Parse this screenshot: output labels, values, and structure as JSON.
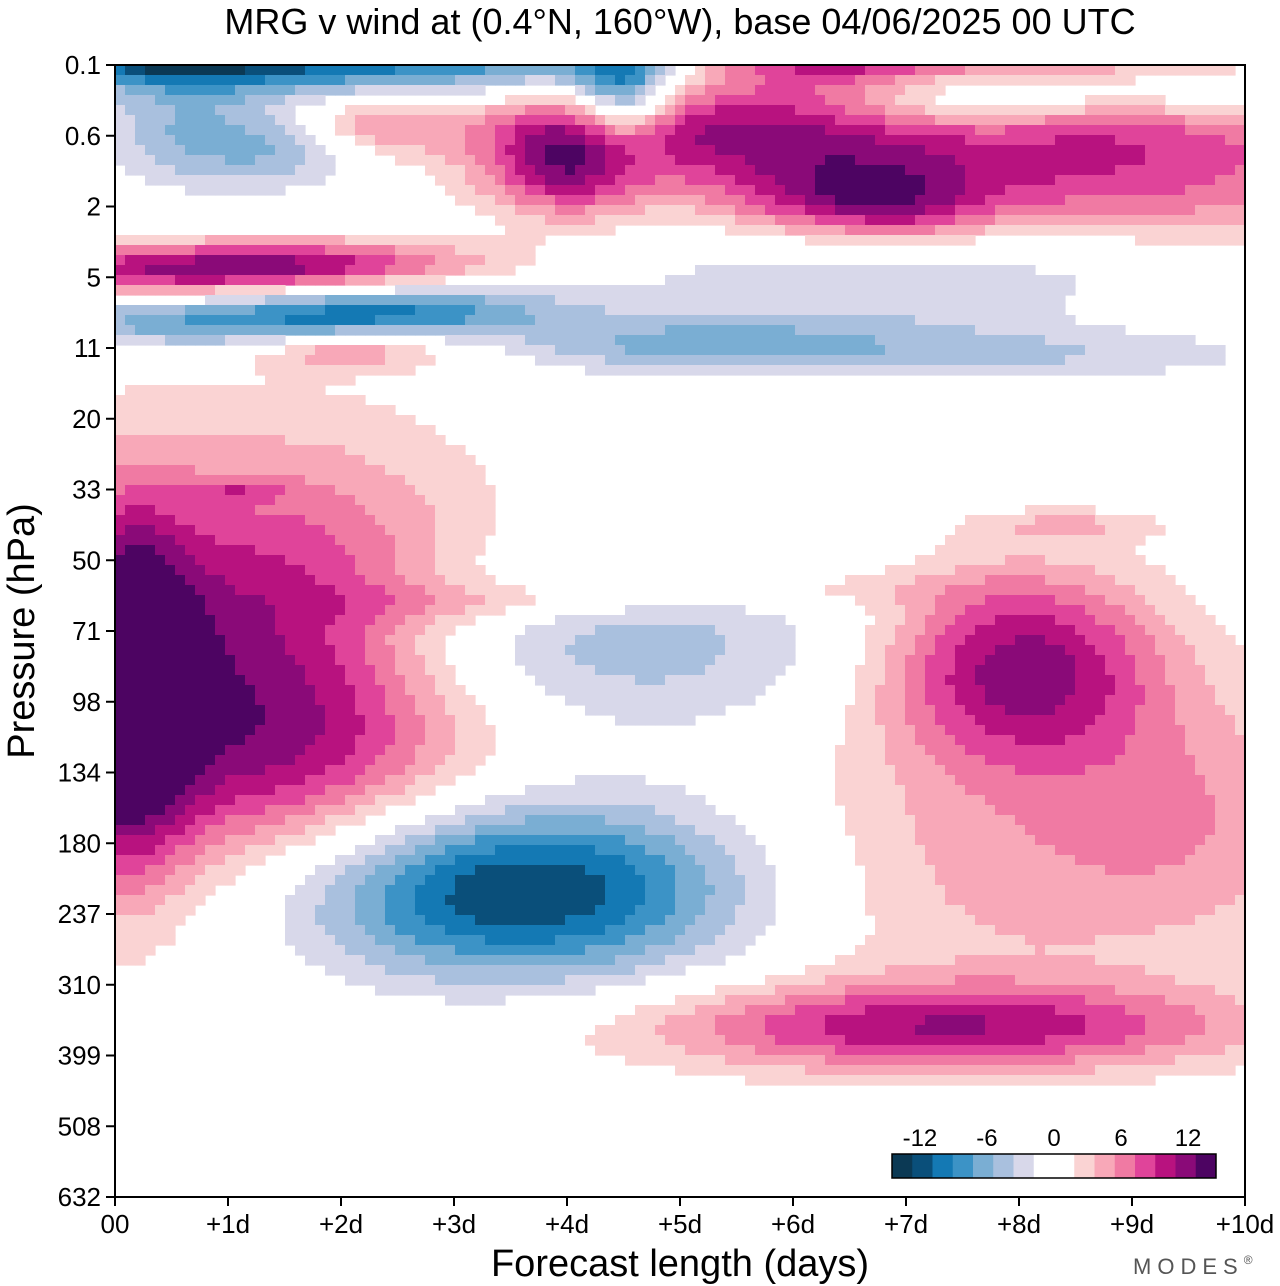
{
  "chart_data": {
    "type": "heatmap",
    "title": "MRG v wind at (0.4°N, 160°W),  base 04/06/2025  00 UTC",
    "xlabel": "Forecast length (days)",
    "ylabel": "Pressure (hPa)",
    "x_ticks": [
      "00",
      "+1d",
      "+2d",
      "+3d",
      "+4d",
      "+5d",
      "+6d",
      "+7d",
      "+8d",
      "+9d",
      "+10d"
    ],
    "y_ticks": [
      "0.1",
      "0.6",
      "2",
      "5",
      "11",
      "20",
      "33",
      "50",
      "71",
      "98",
      "134",
      "180",
      "237",
      "310",
      "399",
      "508",
      "632"
    ],
    "xlim": [
      0,
      10
    ],
    "colorbar": {
      "tick_labels": [
        "-12",
        "-6",
        "0",
        "6",
        "12"
      ],
      "tick_values": [
        -12,
        -6,
        0,
        6,
        12
      ],
      "range": [
        -14.5,
        14.5
      ],
      "colors": [
        "#0b3954",
        "#0a4f7a",
        "#1479b4",
        "#3c93c6",
        "#7aaed3",
        "#a9c0de",
        "#d8d8ea",
        "#ffffff",
        "#ffffff",
        "#fad3d3",
        "#f8a8b8",
        "#f07aa3",
        "#e0449a",
        "#b8127f",
        "#8a0a78",
        "#4d0462"
      ]
    },
    "features": [
      {
        "x": 1.3,
        "level": 7.35,
        "rx": 1.4,
        "ry": 2.0,
        "value": 15
      },
      {
        "x": 0.1,
        "level": 7.1,
        "rx": 0.4,
        "ry": 1.7,
        "value": 13
      },
      {
        "x": 8.0,
        "level": 7.5,
        "rx": 0.9,
        "ry": 1.0,
        "value": 12
      },
      {
        "x": 9.6,
        "level": 5.4,
        "rx": 1.0,
        "ry": 1.3,
        "value": 4
      },
      {
        "x": 7.6,
        "level": 4.6,
        "rx": 1.5,
        "ry": 1.4,
        "value": 4
      },
      {
        "x": 3.45,
        "level": 4.35,
        "rx": 1.5,
        "ry": 0.9,
        "value": -14
      },
      {
        "x": 3.6,
        "level": 7.8,
        "rx": 2.1,
        "ry": 0.9,
        "value": -6
      },
      {
        "x": 7.3,
        "level": 2.4,
        "rx": 1.9,
        "ry": 0.45,
        "value": 10
      },
      {
        "x": 8.3,
        "level": 14.5,
        "rx": 2.4,
        "ry": 0.9,
        "value": 9
      },
      {
        "x": 5.5,
        "level": 15.1,
        "rx": 1.6,
        "ry": 0.5,
        "value": 8
      },
      {
        "x": 9.0,
        "level": 15.4,
        "rx": 1.2,
        "ry": 0.35,
        "value": 6
      },
      {
        "x": 0.5,
        "level": 16.5,
        "rx": 0.4,
        "ry": 0.35,
        "value": -14
      },
      {
        "x": 0.8,
        "level": 16.3,
        "rx": 1.1,
        "ry": 0.4,
        "value": -9
      },
      {
        "x": 3.0,
        "level": 16.1,
        "rx": 2.1,
        "ry": 0.4,
        "value": -9
      },
      {
        "x": 4.5,
        "level": 15.6,
        "rx": 0.3,
        "ry": 0.6,
        "value": -10
      },
      {
        "x": 0.6,
        "level": 15.0,
        "rx": 0.5,
        "ry": 0.5,
        "value": -5
      },
      {
        "x": 1.5,
        "level": 14.8,
        "rx": 0.5,
        "ry": 0.4,
        "value": -5
      },
      {
        "x": 2.3,
        "level": 15.2,
        "rx": 0.5,
        "ry": 0.3,
        "value": 5
      },
      {
        "x": 4.0,
        "level": 14.6,
        "rx": 0.5,
        "ry": 0.55,
        "value": 9
      },
      {
        "x": 7.4,
        "level": 15.6,
        "rx": 0.9,
        "ry": 0.45,
        "value": -8
      },
      {
        "x": 9.3,
        "level": 15.5,
        "rx": 1.4,
        "ry": 0.3,
        "value": -8
      },
      {
        "x": 6.0,
        "level": 16.6,
        "rx": 0.8,
        "ry": 0.35,
        "value": 10
      },
      {
        "x": 6.7,
        "level": 16.1,
        "rx": 1.2,
        "ry": 0.4,
        "value": 11
      },
      {
        "x": 7.6,
        "level": 16.6,
        "rx": 1.3,
        "ry": 0.3,
        "value": 9
      },
      {
        "x": 8.8,
        "level": 16.6,
        "rx": 1.1,
        "ry": 0.3,
        "value": 13
      },
      {
        "x": 6.2,
        "level": 14.1,
        "rx": 0.6,
        "ry": 0.4,
        "value": 5
      },
      {
        "x": 7.0,
        "level": 14.0,
        "rx": 0.5,
        "ry": 0.35,
        "value": 5
      },
      {
        "x": 0.5,
        "level": 13.1,
        "rx": 1.3,
        "ry": 0.25,
        "value": 9
      },
      {
        "x": 2.0,
        "level": 13.2,
        "rx": 1.2,
        "ry": 0.25,
        "value": 6
      },
      {
        "x": 1.2,
        "level": 12.35,
        "rx": 1.5,
        "ry": 0.25,
        "value": -8
      },
      {
        "x": 2.5,
        "level": 12.6,
        "rx": 1.0,
        "ry": 0.25,
        "value": -6
      },
      {
        "x": 2.1,
        "level": 12.0,
        "rx": 0.6,
        "ry": 0.2,
        "value": 6
      },
      {
        "x": 7.2,
        "level": 13.2,
        "rx": 2.2,
        "ry": 0.55,
        "value": -5
      },
      {
        "x": 6.0,
        "level": 12.1,
        "rx": 1.4,
        "ry": 0.35,
        "value": -4
      },
      {
        "x": 8.3,
        "level": 11.9,
        "rx": 1.5,
        "ry": 0.25,
        "value": -3
      },
      {
        "x": 4.8,
        "level": 12.0,
        "rx": 0.9,
        "ry": 0.25,
        "value": -3
      },
      {
        "x": 5.5,
        "level": 8.6,
        "rx": 1.2,
        "ry": 0.2,
        "value": 3
      },
      {
        "x": 3.3,
        "level": 8.4,
        "rx": 1.0,
        "ry": 0.2,
        "value": 3
      },
      {
        "x": 8.5,
        "level": 9.5,
        "rx": 0.6,
        "ry": 0.15,
        "value": 3
      },
      {
        "x": 1.1,
        "level": 10.0,
        "rx": 0.3,
        "ry": 0.1,
        "value": 3
      }
    ]
  },
  "brand": "MODES",
  "brand_mark": "®"
}
